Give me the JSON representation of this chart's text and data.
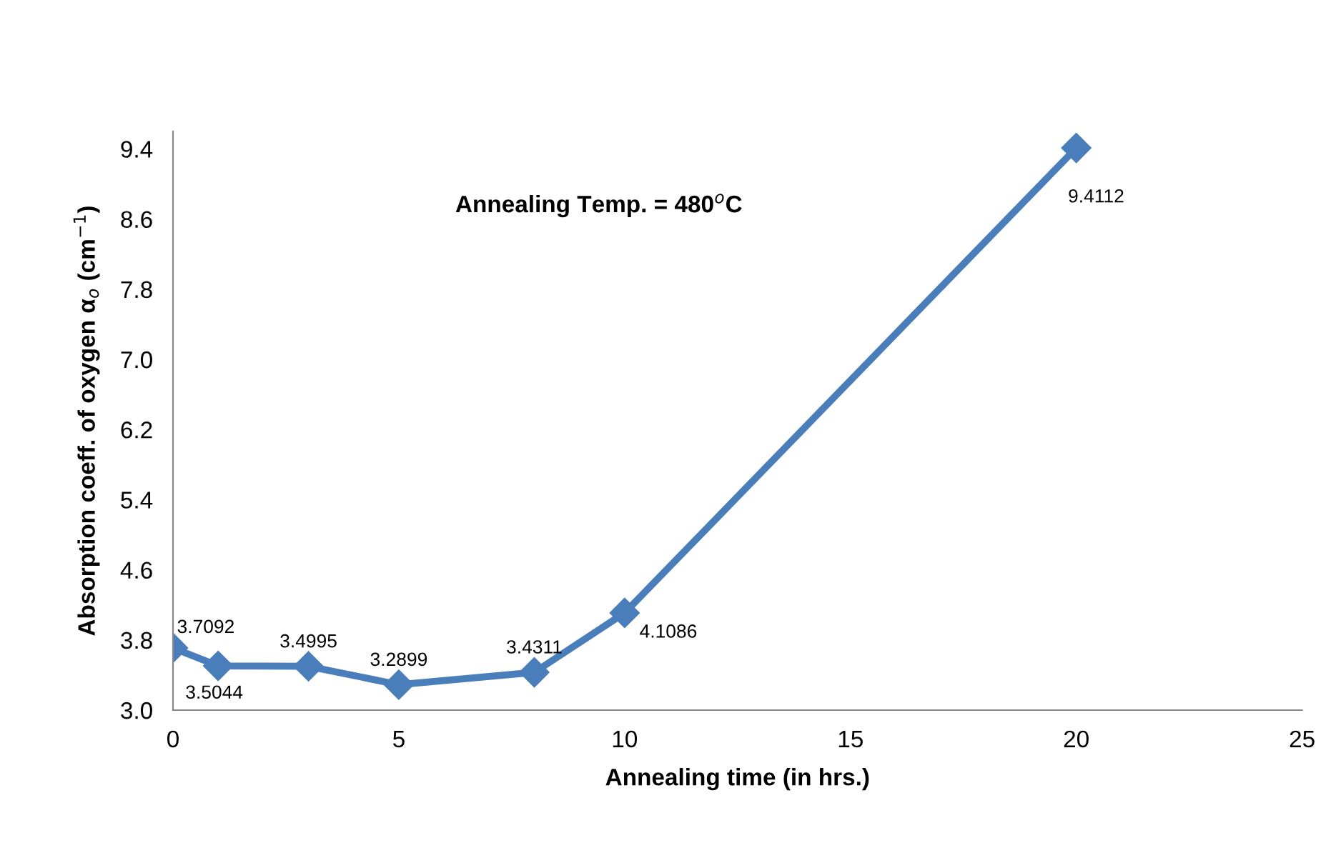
{
  "chart_data": {
    "type": "line",
    "xlabel": "Annealing time (in hrs.)",
    "ylabel": "Absorption coeff. of oxygen α$_{o}$ (cm$^{−1}$)",
    "annotations": [
      "Annealing Temp. = 480$^{o}$C"
    ],
    "x": [
      0,
      1,
      3,
      5,
      8,
      10,
      20
    ],
    "series": [
      {
        "color": "#4a7ebb",
        "values": [
          3.7092,
          3.5044,
          3.4995,
          3.2899,
          3.4311,
          4.1086,
          9.4112
        ]
      }
    ],
    "xlim": [
      0,
      25
    ],
    "xticks": [
      0,
      5,
      10,
      15,
      20,
      25
    ],
    "ylim": [
      3.0,
      9.6
    ],
    "yticks": [
      {
        "value": 3.0,
        "label": "3.0"
      },
      3.8,
      4.6,
      5.4,
      6.2,
      {
        "value": 7.0,
        "label": "7.0"
      },
      7.8,
      8.6,
      9.4
    ],
    "data_labels": true,
    "marker": "diamond",
    "line_style": "solid",
    "grid": false,
    "legend": false
  }
}
